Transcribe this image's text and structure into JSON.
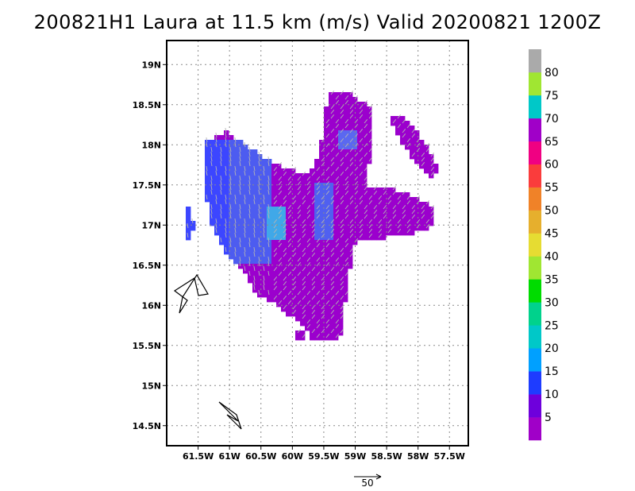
{
  "title": "200821H1 Laura at 11.5 km (m/s) Valid 20200821 1200Z",
  "chart_data": {
    "type": "heatmap",
    "title": "200821H1 Laura at 11.5 km (m/s) Valid 20200821 1200Z",
    "x_tick_labels": [
      "61.5W",
      "61W",
      "60.5W",
      "60W",
      "59.5W",
      "59W",
      "58.5W",
      "58W",
      "57.5W"
    ],
    "x_tick_values": [
      -61.5,
      -61.0,
      -60.5,
      -60.0,
      -59.5,
      -59.0,
      -58.5,
      -58.0,
      -57.5
    ],
    "y_tick_labels": [
      "14.5N",
      "15N",
      "15.5N",
      "16N",
      "16.5N",
      "17N",
      "17.5N",
      "18N",
      "18.5N",
      "19N"
    ],
    "y_tick_values": [
      14.5,
      15.0,
      15.5,
      16.0,
      16.5,
      17.0,
      17.5,
      18.0,
      18.5,
      19.0
    ],
    "xlim": [
      -62.0,
      -57.2
    ],
    "ylim": [
      14.25,
      19.3
    ],
    "grid": true,
    "colorbar": {
      "labels": [
        "5",
        "10",
        "15",
        "20",
        "25",
        "30",
        "35",
        "40",
        "45",
        "50",
        "55",
        "60",
        "65",
        "70",
        "75",
        "80"
      ],
      "colors": [
        "#a000c8",
        "#6e00dc",
        "#1e3cff",
        "#00a0ff",
        "#00c8c8",
        "#00d28c",
        "#00dc00",
        "#a0e632",
        "#e6dc32",
        "#e6af2d",
        "#f08228",
        "#fa3c3c",
        "#f00082",
        "#a000c8",
        "#00c8c8",
        "#a0e632",
        "#aaaaaa"
      ]
    },
    "reference_vector_label": "50"
  }
}
